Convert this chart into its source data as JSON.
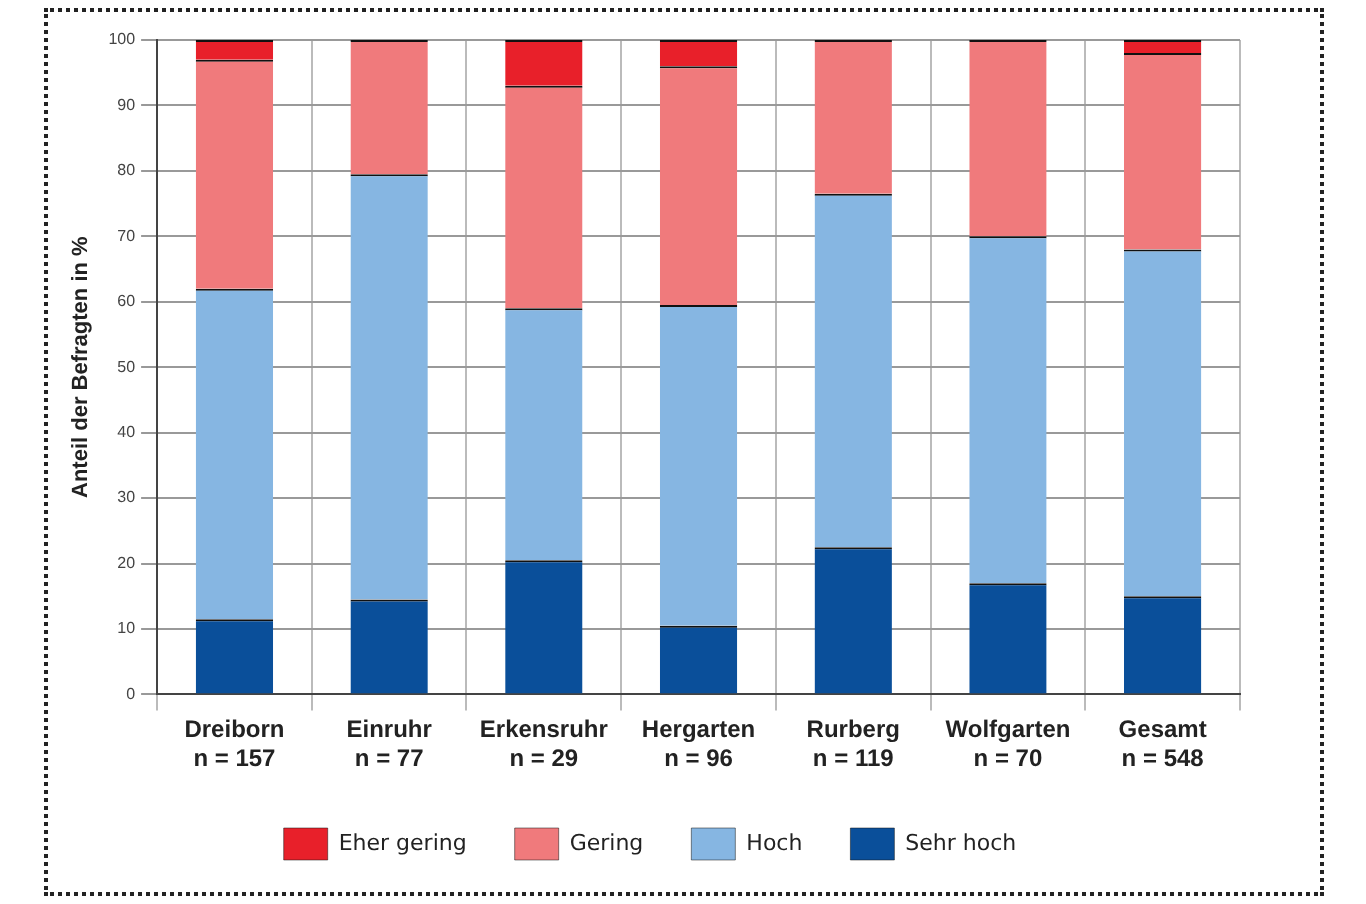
{
  "chart_data": {
    "type": "bar",
    "stacked": true,
    "ylabel": "Anteil der Befragten in %",
    "categories": [
      "Dreiborn\nn = 157",
      "Einruhr\nn = 77",
      "Erkensruhr\nn = 29",
      "Hergarten\nn = 96",
      "Rurberg\nn = 119",
      "Wolfgarten\nn = 70",
      "Gesamt\nn = 548"
    ],
    "series": [
      {
        "name": "Sehr hoch",
        "color": "#0a4f9a",
        "values": [
          11.5,
          14.5,
          20.5,
          10.5,
          22.5,
          17,
          15
        ]
      },
      {
        "name": "Hoch",
        "color": "#86b6e2",
        "values": [
          50.5,
          65,
          38.5,
          49,
          54,
          53,
          53
        ]
      },
      {
        "name": "Gering",
        "color": "#f07a7c",
        "values": [
          35,
          20.5,
          34,
          36.5,
          23.5,
          30,
          30
        ]
      },
      {
        "name": "Eher gering",
        "color": "#e8202a",
        "values": [
          3,
          0,
          7,
          4,
          0,
          0,
          2
        ]
      }
    ],
    "ylim": [
      0,
      100
    ],
    "yticks": [
      0,
      10,
      20,
      30,
      40,
      50,
      60,
      70,
      80,
      90,
      100
    ],
    "grid": true,
    "legend": "bottom"
  }
}
